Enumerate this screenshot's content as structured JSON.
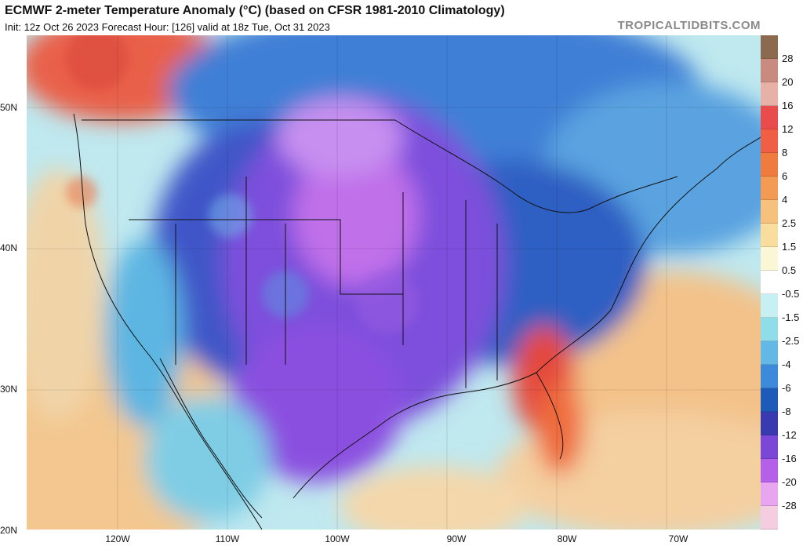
{
  "header": {
    "title": "ECMWF 2-meter Temperature Anomaly (°C) (based on CFSR 1981-2010 Climatology)",
    "subtitle": "Init: 12z Oct 26 2023   Forecast Hour: [126]   valid at 18z Tue, Oct 31 2023",
    "watermark": "TROPICALTIDBITS.COM"
  },
  "axes": {
    "lat_labels": [
      "50N",
      "40N",
      "30N",
      "20N"
    ],
    "lon_labels": [
      "120W",
      "110W",
      "100W",
      "90W",
      "80W",
      "70W"
    ]
  },
  "colorbar": {
    "labels": [
      "28",
      "20",
      "16",
      "12",
      "8",
      "6",
      "4",
      "2.5",
      "1.5",
      "0.5",
      "-0.5",
      "-1.5",
      "-2.5",
      "-4",
      "-6",
      "-8",
      "-12",
      "-16",
      "-20",
      "-28"
    ],
    "colors": [
      "#8c6a4f",
      "#c98b7f",
      "#e7b1a8",
      "#e94c4c",
      "#ef5f45",
      "#f07b3e",
      "#f39a54",
      "#f6c17c",
      "#f8dd9f",
      "#fbf6d6",
      "#ffffff",
      "#c7f0f3",
      "#8fdde9",
      "#63b8e6",
      "#3c8ad9",
      "#1e5bb8",
      "#3a3ab0",
      "#7a47d6",
      "#b560e8",
      "#e7a6ef",
      "#f4cde0"
    ]
  },
  "colors": {
    "land_cold": "#4a4fd0",
    "land_purple": "#8b4fe0",
    "ocean_warm": "#f3c78f",
    "ocean_neutral": "#bfe8ef"
  }
}
